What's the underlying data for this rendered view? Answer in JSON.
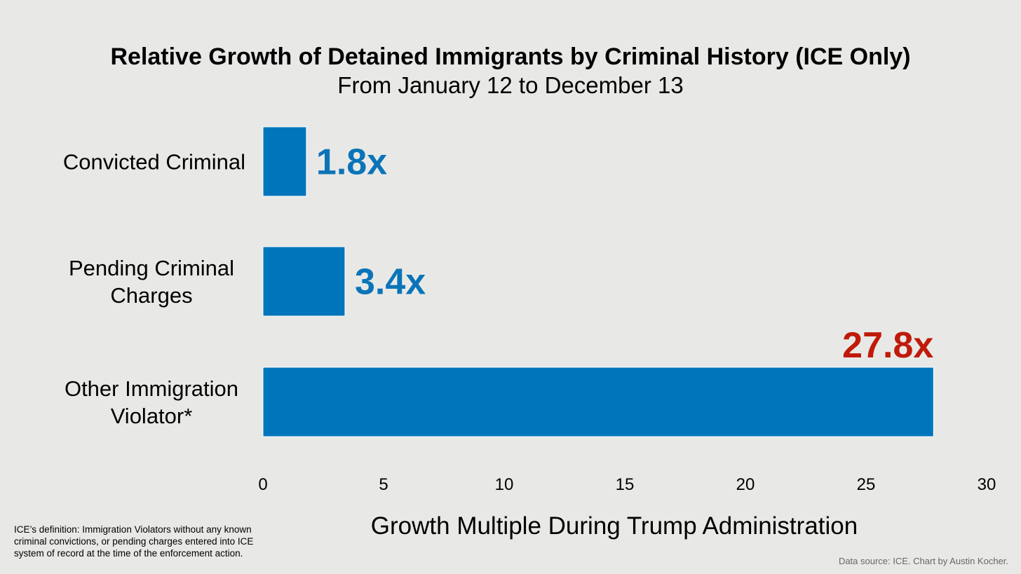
{
  "chart_data": {
    "type": "bar",
    "orientation": "horizontal",
    "title": "Relative Growth of Detained Immigrants by Criminal History (ICE Only)",
    "subtitle": "From January 12 to December 13",
    "categories": [
      [
        "Convicted Criminal"
      ],
      [
        "Pending Criminal",
        "Charges"
      ],
      [
        "Other Immigration",
        "Violator*"
      ]
    ],
    "values": [
      1.8,
      3.4,
      27.8
    ],
    "value_labels": [
      "1.8x",
      "3.4x",
      "27.8x"
    ],
    "label_colors": [
      "#0b74b8",
      "#0b74b8",
      "#c01a0a"
    ],
    "bar_color": "#0075bb",
    "xlabel": "Growth Multiple During Trump Administration",
    "xlim": [
      0,
      30
    ],
    "xticks": [
      0,
      5,
      10,
      15,
      20,
      25,
      30
    ],
    "grid": false
  },
  "footnote": [
    "ICE’s definition: Immigration Violators without any known",
    "criminal convictions, or pending charges entered into ICE",
    "system of record at the time of the enforcement action."
  ],
  "source": "Data source: ICE. Chart by Austin Kocher."
}
